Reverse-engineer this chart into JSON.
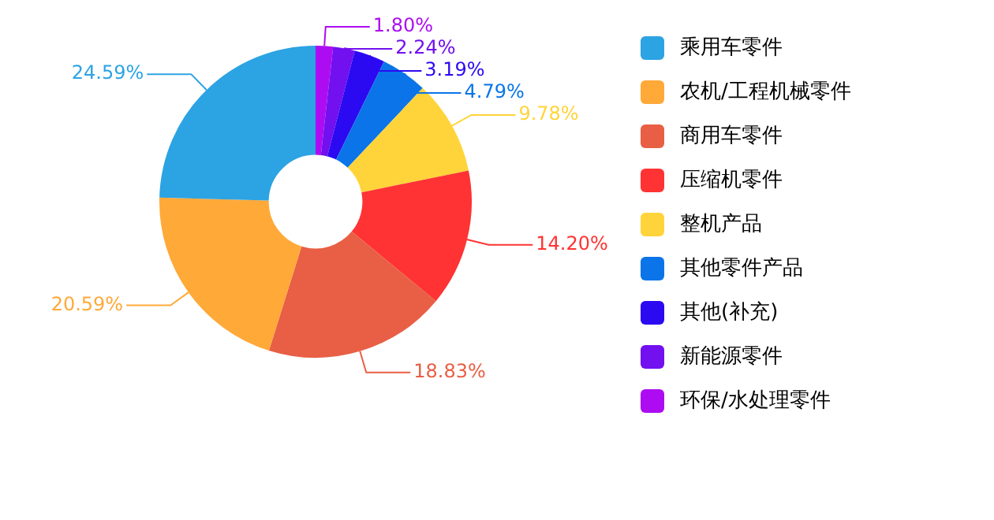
{
  "chart_data": {
    "type": "donut",
    "categories": [
      "乘用车零件",
      "农机/工程机械零件",
      "商用车零件",
      "压缩机零件",
      "整机产品",
      "其他零件产品",
      "其他(补充)",
      "新能源零件",
      "环保/水处理零件"
    ],
    "values": [
      24.59,
      20.59,
      18.83,
      14.2,
      9.78,
      4.79,
      3.19,
      2.24,
      1.8
    ],
    "value_labels": [
      "24.59%",
      "20.59%",
      "18.83%",
      "14.20%",
      "9.78%",
      "4.79%",
      "3.19%",
      "2.24%",
      "1.80%"
    ],
    "colors": [
      "#2ca3e3",
      "#ffa939",
      "#e85f45",
      "#ff3333",
      "#ffd43a",
      "#0a74e8",
      "#2b0af2",
      "#7210ef",
      "#ad0cf2"
    ],
    "legend": "right"
  }
}
